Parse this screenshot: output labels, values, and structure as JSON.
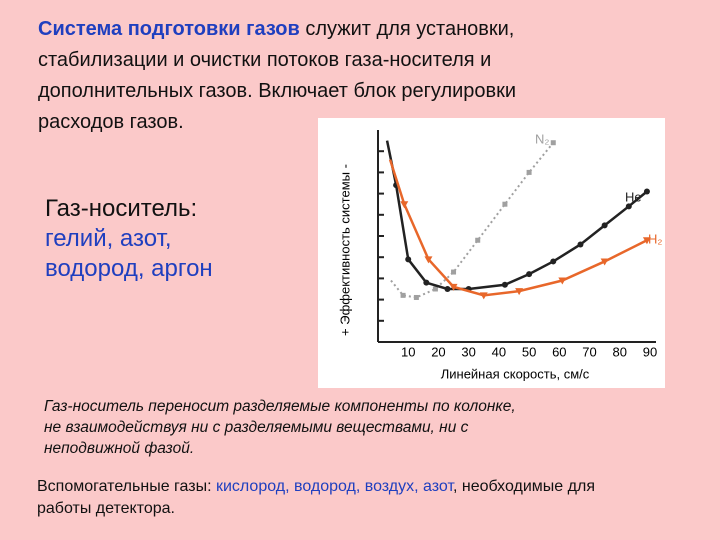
{
  "intro": {
    "highlight": "Система подготовки газов",
    "lines": [
      "служит для установки,",
      "стабилизации и очистки потоков газа-носителя и",
      "дополнительных газов. Включает блок регулировки",
      "расходов газов."
    ]
  },
  "carrier": {
    "label": "Газ-носитель:",
    "gases": [
      "гелий, азот,",
      "водород, аргон"
    ]
  },
  "note": [
    "Газ-носитель переносит разделяемые компоненты по колонке,",
    "не взаимодействуя ни с разделяемыми веществами, ни с",
    "неподвижной фазой."
  ],
  "auxiliary": {
    "label": "Вспомогательные газы:",
    "gases": "кислород, водород, воздух, азот",
    "text": ", необходимые для работы детектора."
  },
  "chart_data": {
    "type": "line",
    "x_label": "Линейная скорость, см/с",
    "y_label": "+ Эффективность системы -",
    "xlim": [
      0,
      92
    ],
    "ylim": [
      0,
      10
    ],
    "xticks": [
      10,
      20,
      30,
      40,
      50,
      60,
      70,
      80,
      90
    ],
    "yticks": [
      1,
      2,
      3,
      4,
      5,
      6,
      7,
      8,
      9
    ],
    "series": [
      {
        "name": "N₂",
        "color": "#a0a0a0",
        "style": "dotted",
        "marker": "square",
        "x": [
          4.3,
          8.3,
          12.7,
          19,
          25,
          33,
          42,
          50,
          58
        ],
        "values": [
          2.9,
          2.2,
          2.1,
          2.5,
          3.3,
          4.8,
          6.5,
          8.0,
          9.4
        ]
      },
      {
        "name": "He",
        "color": "#222222",
        "style": "solid",
        "marker": "circle",
        "x": [
          3,
          6,
          10,
          16,
          23,
          30,
          42,
          50,
          58,
          67,
          75,
          83,
          89
        ],
        "values": [
          9.5,
          7.4,
          3.9,
          2.8,
          2.5,
          2.5,
          2.7,
          3.2,
          3.8,
          4.6,
          5.5,
          6.4,
          7.1
        ]
      },
      {
        "name": "H₂",
        "color": "#e8672a",
        "style": "solid",
        "marker": "triangle",
        "x": [
          4,
          8.7,
          16.7,
          25,
          35,
          46.7,
          61,
          75,
          89
        ],
        "values": [
          8.6,
          6.5,
          3.9,
          2.6,
          2.2,
          2.4,
          2.9,
          3.8,
          4.8
        ]
      }
    ]
  }
}
